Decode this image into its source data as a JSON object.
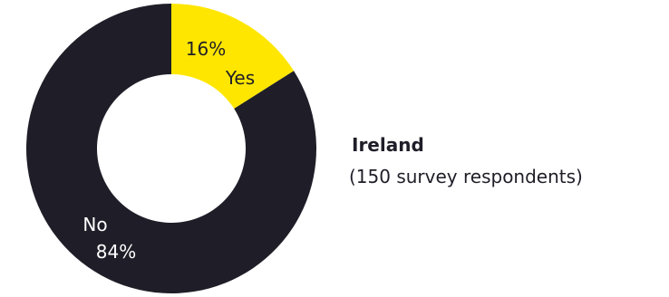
{
  "chart_data": {
    "type": "pie",
    "donut": true,
    "start_angle_deg": 0,
    "direction": "clockwise",
    "slices": [
      {
        "name": "Yes",
        "label": "Yes",
        "value": 16,
        "value_label": "16%",
        "color": "#ffe600",
        "label_text_color": "#1f1e28"
      },
      {
        "name": "No",
        "label": "No",
        "value": 84,
        "value_label": "84%",
        "color": "#1f1e28",
        "label_text_color": "#ffffff"
      }
    ]
  },
  "region": {
    "title": "Ireland",
    "respondents": "(150 survey respondents)"
  }
}
